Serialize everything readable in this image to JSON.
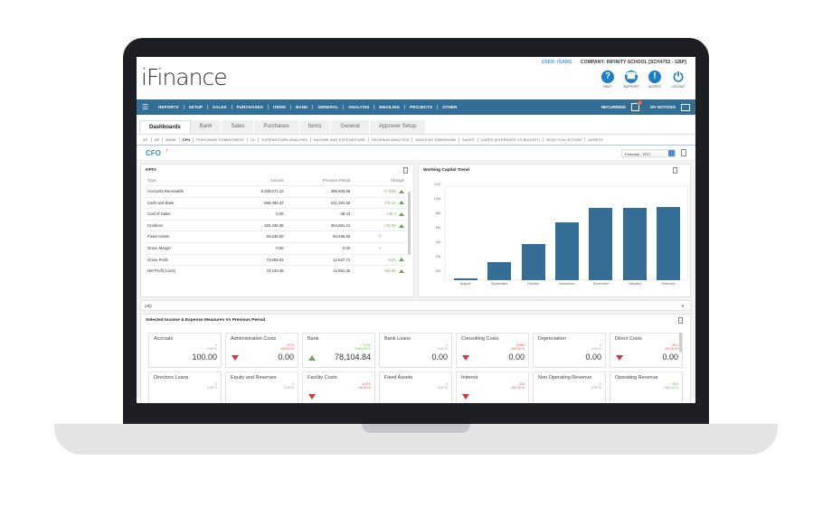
{
  "app": {
    "logo": "iFinance",
    "user": "USER: ISAMS",
    "company": "COMPANY: INFINITY SCHOOL [SCH4752 - GBP]"
  },
  "header_icons": [
    {
      "label": "HELP",
      "glyph": "?",
      "icon": "help-icon"
    },
    {
      "label": "SUPPORT",
      "glyph": "☎",
      "icon": "support-headset-icon"
    },
    {
      "label": "ALERTS",
      "glyph": "!",
      "icon": "alert-icon"
    },
    {
      "label": "LOGOUT",
      "glyph": "⏻",
      "icon": "power-icon"
    }
  ],
  "navbar": {
    "menu_glyph": "☰",
    "items": [
      "REPORTS",
      "SETUP",
      "SALES",
      "PURCHASES",
      "ITEMS",
      "BANK",
      "GENERAL",
      "ANALYSIS",
      "EMAILING",
      "PROJECTS",
      "OTHER"
    ],
    "recurring_label": "RECURRING",
    "recurring_badge": "2",
    "notices_label": "MY NOTICES",
    "notices_glyph": "···"
  },
  "tabs": [
    "Dashboards",
    "Bank",
    "Sales",
    "Purchases",
    "Items",
    "General",
    "Approver Setup"
  ],
  "active_tab": "Dashboards",
  "subtabs": [
    "AP",
    "AR",
    "BANK",
    "CFO",
    "PURCHASE COMMITMENT",
    "CL",
    "EXPENDITURE ANALYSIS",
    "INCOME AND EXPENDITURE",
    "REVENUE ANALYSIS",
    "SALES BY DIMENSION",
    "SALES",
    "CAPEX (EXPENSES VS BUDGET)",
    "RENT COLLECTION",
    "ASSETS"
  ],
  "active_subtab": "CFO",
  "dashboard": {
    "title": "CFO",
    "filter_glyph": "⊤",
    "period": "February - 2017"
  },
  "kpi": {
    "title": "KPI's",
    "columns": [
      "Type",
      "Amount",
      "Previous Period",
      "Change"
    ],
    "rows": [
      {
        "type": "Accounts Receivable",
        "amount": "8,329,571.22",
        "previous": "396,933.69",
        "change": "+7.93M",
        "dir": "up"
      },
      {
        "type": "Cash and Bank",
        "amount": "689,386.42",
        "previous": "611,281.59",
        "change": "+78.1K",
        "dir": "up"
      },
      {
        "type": "Cost of Sales",
        "amount": "0.00",
        "previous": "-48.43",
        "change": "+48.4",
        "dir": "up"
      },
      {
        "type": "Creditors",
        "amount": "320,439.35",
        "previous": "304,581.21",
        "change": "+15.9K",
        "dir": "up"
      },
      {
        "type": "Fixed Assets",
        "amount": "94,536.50",
        "previous": "94,536.50",
        "change": "0",
        "dir": "none"
      },
      {
        "type": "Gross Margin",
        "amount": "0.00",
        "previous": "0.00",
        "change": "0",
        "dir": "none"
      },
      {
        "type": "Gross Profit",
        "amount": "73,689.63",
        "previous": "12,647.71",
        "change": "+61K",
        "dir": "up"
      },
      {
        "type": "Net Profit (Loss)",
        "amount": "73,433.38",
        "previous": "12,651.35",
        "change": "+60.8K",
        "dir": "up"
      }
    ]
  },
  "chart_data": {
    "type": "bar",
    "title": "Working Capital Trend",
    "categories": [
      "August",
      "September",
      "October",
      "November",
      "December",
      "January",
      "February"
    ],
    "values": [
      0.2,
      2.5,
      5.0,
      8.0,
      10.0,
      10.0,
      10.1
    ],
    "unit": "M",
    "xlabel": "",
    "ylabel": "",
    "ylim": [
      0,
      12
    ],
    "y_ticks": [
      "12M",
      "10M",
      "8M",
      "6M",
      "4M",
      "2M",
      "0M"
    ],
    "color": "#346e96"
  },
  "filter_row": {
    "value": "(All)",
    "caret": "▼"
  },
  "measures": {
    "title": "Selected Income & Expense Measures Vs Previous Period",
    "cards": [
      {
        "name": "Accruals",
        "delta": "0",
        "pct": "0.00 %",
        "value": "100.00",
        "trend": "none"
      },
      {
        "name": "Administration Costs",
        "delta": "-67.4",
        "pct": "-100.00 %",
        "value": "0.00",
        "trend": "down"
      },
      {
        "name": "Bank",
        "delta": "+75.5K",
        "pct": "+2893.59 %",
        "value": "78,104.84",
        "trend": "up"
      },
      {
        "name": "Bank Loans",
        "delta": "0",
        "pct": "0.00 %",
        "value": "0.00",
        "trend": "none"
      },
      {
        "name": "Consulting Costs",
        "delta": "-3.96K",
        "pct": "-100.00 %",
        "value": "0.00",
        "trend": "down"
      },
      {
        "name": "Depreciation",
        "delta": "0",
        "pct": "0.00 %",
        "value": "0.00",
        "trend": "none"
      },
      {
        "name": "Direct Costs",
        "delta": "-48.4",
        "pct": "-100.00 %",
        "value": "0.00",
        "trend": "down"
      },
      {
        "name": "Directors Loans",
        "delta": "0",
        "pct": "0.00 %",
        "value": "",
        "trend": "none"
      },
      {
        "name": "Equity and Reserves",
        "delta": "0",
        "pct": "0.00 %",
        "value": "",
        "trend": "none"
      },
      {
        "name": "Facility Costs",
        "delta": "-8.47K",
        "pct": "-98.83 %",
        "value": "",
        "trend": "down"
      },
      {
        "name": "Fixed Assets",
        "delta": "0",
        "pct": "0.00 %",
        "value": "",
        "trend": "none"
      },
      {
        "name": "Interest",
        "delta": "-333",
        "pct": "-100.00 %",
        "value": "",
        "trend": "down"
      },
      {
        "name": "Non Operating Revenue",
        "delta": "0",
        "pct": "0.00 %",
        "value": "",
        "trend": "none"
      },
      {
        "name": "Operating Revenue",
        "delta": "+61K",
        "pct": "+480.45 %",
        "value": "",
        "trend": "up"
      }
    ]
  },
  "colors": {
    "brand_blue": "#336e96",
    "accent_blue": "#1a7fc4",
    "positive": "#7db35a",
    "negative": "#d9534f"
  }
}
